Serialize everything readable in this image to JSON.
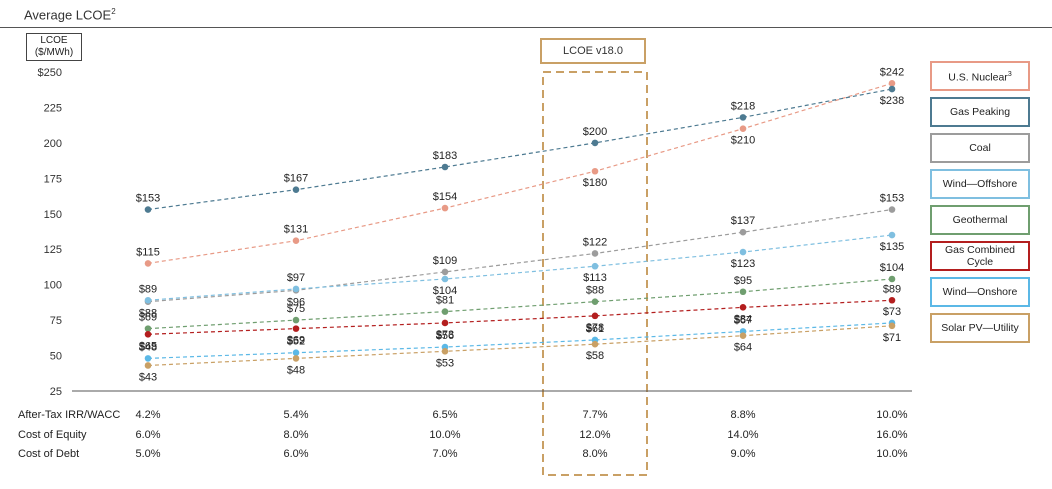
{
  "header": {
    "title": "Average LCOE",
    "title_superscript": "2"
  },
  "highlight": {
    "label": "LCOE v18.0"
  },
  "chart_data": {
    "type": "line",
    "title": "Average LCOE",
    "ylabel": "LCOE ($/MWh)",
    "ylabel_lines": [
      "LCOE",
      "($/MWh)"
    ],
    "ylim": [
      25,
      250
    ],
    "yticks": [
      25,
      50,
      75,
      100,
      125,
      150,
      175,
      200,
      225,
      250
    ],
    "ytick_labels": [
      "25",
      "50",
      "75",
      "100",
      "125",
      "150",
      "175",
      "200",
      "225",
      "$250"
    ],
    "x_points": 6,
    "highlight_index": 3,
    "grid": false,
    "legend_position": "right",
    "series": [
      {
        "name": "U.S. Nuclear",
        "superscript": "3",
        "color": "#e89a86",
        "values": [
          115,
          131,
          154,
          180,
          210,
          242
        ],
        "labels": [
          "$115",
          "$131",
          "$154",
          "$180",
          "$210",
          "$242"
        ],
        "label_pos": [
          "above",
          "above",
          "above",
          "below",
          "below",
          "above"
        ]
      },
      {
        "name": "Gas Peaking",
        "color": "#4d7a91",
        "values": [
          153,
          167,
          183,
          200,
          218,
          238
        ],
        "labels": [
          "$153",
          "$167",
          "$183",
          "$200",
          "$218",
          "$238"
        ],
        "label_pos": [
          "above",
          "above",
          "above",
          "above",
          "above",
          "below"
        ]
      },
      {
        "name": "Coal",
        "color": "#9c9c9c",
        "values": [
          88,
          96,
          109,
          122,
          137,
          153
        ],
        "labels": [
          "$88",
          "$96",
          "$109",
          "$122",
          "$137",
          "$153"
        ],
        "label_pos": [
          "below",
          "below",
          "above",
          "above",
          "above",
          "above"
        ]
      },
      {
        "name": "Wind—Offshore",
        "color": "#7fbfe0",
        "values": [
          89,
          97,
          104,
          113,
          123,
          135
        ],
        "labels": [
          "$89",
          "$97",
          "$104",
          "$113",
          "$123",
          "$135"
        ],
        "label_pos": [
          "above",
          "above",
          "below",
          "below",
          "below",
          "below"
        ]
      },
      {
        "name": "Geothermal",
        "color": "#6f9e6f",
        "values": [
          69,
          75,
          81,
          88,
          95,
          104
        ],
        "labels": [
          "$69",
          "$75",
          "$81",
          "$88",
          "$95",
          "$104"
        ],
        "label_pos": [
          "above",
          "above",
          "above",
          "above",
          "above",
          "above"
        ]
      },
      {
        "name": "Gas Combined Cycle",
        "color": "#b31e1e",
        "values": [
          65,
          69,
          73,
          78,
          84,
          89
        ],
        "labels": [
          "$65",
          "$69",
          "$73",
          "$78",
          "$84",
          "$89"
        ],
        "label_pos": [
          "below",
          "below",
          "below",
          "below",
          "below",
          "above"
        ]
      },
      {
        "name": "Wind—Onshore",
        "color": "#5bb8e6",
        "values": [
          48,
          52,
          56,
          61,
          67,
          73
        ],
        "labels": [
          "$48",
          "$52",
          "$56",
          "$61",
          "$67",
          "$73"
        ],
        "label_pos": [
          "above",
          "above",
          "above",
          "above",
          "above",
          "above"
        ]
      },
      {
        "name": "Solar PV—Utility",
        "color": "#c9a065",
        "values": [
          43,
          48,
          53,
          58,
          64,
          71
        ],
        "labels": [
          "$43",
          "$48",
          "$53",
          "$58",
          "$64",
          "$71"
        ],
        "label_pos": [
          "below",
          "below",
          "below",
          "below",
          "below",
          "below"
        ]
      }
    ],
    "table": [
      {
        "label": "After-Tax IRR/WACC",
        "values": [
          "4.2%",
          "5.4%",
          "6.5%",
          "7.7%",
          "8.8%",
          "10.0%"
        ]
      },
      {
        "label": "Cost of Equity",
        "values": [
          "6.0%",
          "8.0%",
          "10.0%",
          "12.0%",
          "14.0%",
          "16.0%"
        ]
      },
      {
        "label": "Cost of Debt",
        "values": [
          "5.0%",
          "6.0%",
          "7.0%",
          "8.0%",
          "9.0%",
          "10.0%"
        ]
      }
    ]
  },
  "legend": {
    "items": [
      {
        "label": "U.S. Nuclear",
        "superscript": "3",
        "border": "#e89a86"
      },
      {
        "label": "Gas Peaking",
        "border": "#4d7a91"
      },
      {
        "label": "Coal",
        "border": "#9c9c9c"
      },
      {
        "label": "Wind—Offshore",
        "border": "#7fbfe0"
      },
      {
        "label": "Geothermal",
        "border": "#6f9e6f"
      },
      {
        "label": "Gas Combined Cycle",
        "border": "#b31e1e"
      },
      {
        "label": "Wind—Onshore",
        "border": "#5bb8e6"
      },
      {
        "label": "Solar PV—Utility",
        "border": "#c9a065"
      }
    ]
  }
}
